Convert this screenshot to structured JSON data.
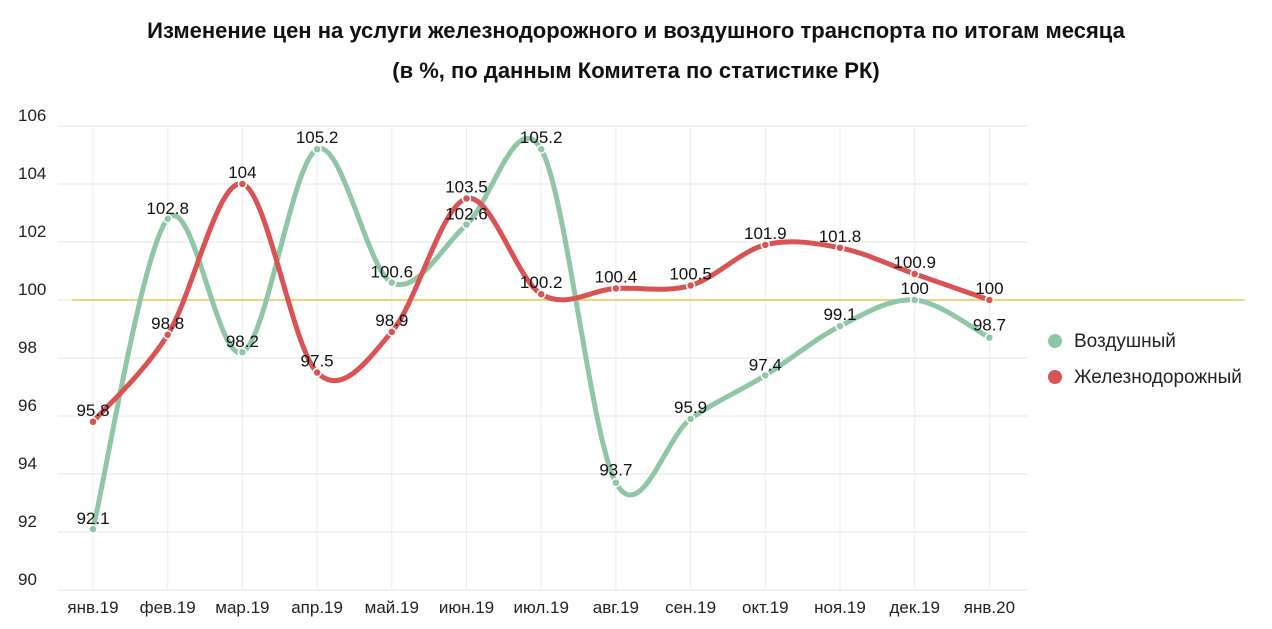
{
  "chart_data": {
    "type": "line",
    "title": "Изменение цен на услуги железнодорожного и воздушного транспорта по итогам месяца",
    "subtitle": "(в %, по данным Комитета по статистике РК)",
    "categories": [
      "янв.19",
      "фев.19",
      "мар.19",
      "апр.19",
      "май.19",
      "июн.19",
      "июл.19",
      "авг.19",
      "сен.19",
      "окт.19",
      "ноя.19",
      "дек.19",
      "янв.20"
    ],
    "series": [
      {
        "name": "Воздушный",
        "color": "#8fc6a6",
        "values": [
          92.1,
          102.8,
          98.2,
          105.2,
          100.6,
          102.6,
          105.2,
          93.7,
          95.9,
          97.4,
          99.1,
          100,
          98.7
        ]
      },
      {
        "name": "Железнодорожный",
        "color": "#d95355",
        "values": [
          95.8,
          98.8,
          104,
          97.5,
          98.9,
          103.5,
          100.2,
          100.4,
          100.5,
          101.9,
          101.8,
          100.9,
          100
        ]
      }
    ],
    "yticks": [
      "90",
      "92",
      "94",
      "96",
      "98",
      "100",
      "102",
      "104",
      "106"
    ],
    "ylim": [
      90,
      106
    ],
    "reference_line": {
      "value": 100,
      "color": "#f0d27a"
    },
    "grid": true,
    "legend_position": "right"
  }
}
